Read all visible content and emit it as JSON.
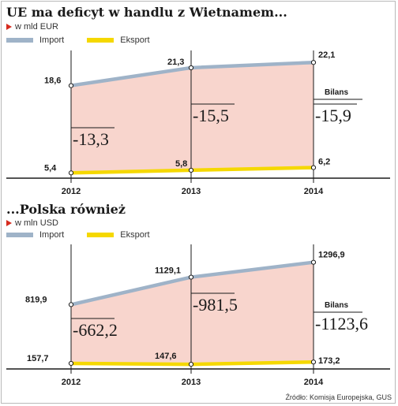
{
  "colors": {
    "import": "#9fb3c8",
    "export": "#f5d800",
    "fill": "#f8d5cd",
    "accent": "#d62b1e"
  },
  "legend": {
    "import": "Import",
    "export": "Eksport"
  },
  "balance_label": "Bilans",
  "source": "Źródło: Komisja Europejska, GUS",
  "chart_data": [
    {
      "type": "line",
      "title": "UE ma deficyt w handlu z Wietnamem...",
      "subtitle": "w mld EUR",
      "x": [
        "2012",
        "2013",
        "2014"
      ],
      "series": [
        {
          "name": "Import",
          "values": [
            18.6,
            21.3,
            22.1
          ],
          "labels": [
            "18,6",
            "21,3",
            "22,1"
          ]
        },
        {
          "name": "Eksport",
          "values": [
            5.4,
            5.8,
            6.2
          ],
          "labels": [
            "5,4",
            "5,8",
            "6,2"
          ]
        }
      ],
      "balance": [
        -13.3,
        -15.5,
        -15.9
      ],
      "balance_labels": [
        "-13,3",
        "-15,5",
        "-15,9"
      ],
      "ylim": [
        4.6,
        23.2
      ]
    },
    {
      "type": "line",
      "title": "...Polska również",
      "subtitle": "w mln USD",
      "x": [
        "2012",
        "2013",
        "2014"
      ],
      "series": [
        {
          "name": "Import",
          "values": [
            819.9,
            1129.1,
            1296.9
          ],
          "labels": [
            "819,9",
            "1129,1",
            "1296,9"
          ]
        },
        {
          "name": "Eksport",
          "values": [
            157.7,
            147.6,
            173.2
          ],
          "labels": [
            "157,7",
            "147,6",
            "173,2"
          ]
        }
      ],
      "balance": [
        -662.2,
        -981.5,
        -1123.6
      ],
      "balance_labels": [
        "-662,2",
        "-981,5",
        "-1123,6"
      ],
      "ylim": [
        95,
        1445
      ]
    }
  ]
}
